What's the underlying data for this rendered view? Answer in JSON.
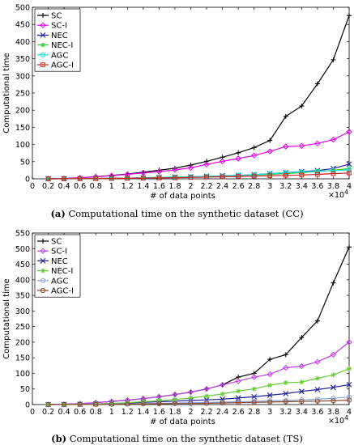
{
  "figure": {
    "captions": [
      {
        "label": "(a)",
        "text": "Computational time on the synthetic dataset (CC)"
      },
      {
        "label": "(b)",
        "text": "Computational time on the synthetic dataset (TS)"
      }
    ]
  },
  "chart_data": [
    {
      "type": "line",
      "title": "",
      "xlabel": "# of data points",
      "ylabel": "Computational time",
      "x_multiplier_label": "×10",
      "x_multiplier_exp": "4",
      "xlim": [
        0,
        4
      ],
      "ylim": [
        0,
        500
      ],
      "xticks": [
        "0",
        "0.2",
        "0.4",
        "0.6",
        "0.8",
        "1",
        "1.2",
        "1.4",
        "1.6",
        "1.8",
        "2",
        "2.2",
        "2.4",
        "2.6",
        "2.8",
        "3",
        "3.2",
        "3.4",
        "3.6",
        "3.8",
        "4"
      ],
      "yticks": [
        "0",
        "50",
        "100",
        "150",
        "200",
        "250",
        "300",
        "350",
        "400",
        "450",
        "500"
      ],
      "legend_position": "top-left",
      "x": [
        0.2,
        0.4,
        0.6,
        0.8,
        1.0,
        1.2,
        1.4,
        1.6,
        1.8,
        2.0,
        2.2,
        2.4,
        2.6,
        2.8,
        3.0,
        3.2,
        3.4,
        3.6,
        3.8,
        4.0
      ],
      "series": [
        {
          "name": "SC",
          "color": "#000000",
          "marker": "plus",
          "values": [
            0.2,
            1,
            3,
            6,
            10,
            14,
            19,
            25,
            31,
            40,
            51,
            63,
            76,
            91,
            112,
            182,
            212,
            277,
            347,
            476
          ]
        },
        {
          "name": "SC-I",
          "color": "#e600e6",
          "marker": "diamond",
          "values": [
            0.2,
            1,
            3,
            6,
            9,
            13,
            17,
            21,
            26,
            32,
            42,
            51,
            59,
            68,
            80,
            94,
            96,
            103,
            114,
            137
          ]
        },
        {
          "name": "NEC",
          "color": "#1f1f9e",
          "marker": "x",
          "values": [
            0.1,
            0.3,
            0.6,
            1,
            1.5,
            2,
            3,
            4,
            5,
            6,
            7,
            9,
            10,
            12,
            15,
            18,
            21,
            24,
            30,
            43
          ]
        },
        {
          "name": "NEC-I",
          "color": "#39cc39",
          "marker": "star",
          "values": [
            0.1,
            0.3,
            0.6,
            1,
            1.5,
            2,
            3,
            4,
            5,
            6,
            7,
            8,
            9,
            11,
            13,
            15,
            18,
            21,
            25,
            30
          ]
        },
        {
          "name": "AGC",
          "color": "#16d9d9",
          "marker": "circle",
          "values": [
            0.1,
            0.3,
            0.6,
            1,
            1.5,
            2,
            3,
            4,
            5,
            6,
            7,
            8,
            10,
            12,
            15,
            18,
            20,
            22,
            24,
            26
          ]
        },
        {
          "name": "AGC-I",
          "color": "#d11a1a",
          "marker": "square",
          "values": [
            0.1,
            0.2,
            0.4,
            0.7,
            1,
            1.5,
            2,
            2.5,
            3,
            4,
            5,
            6,
            7,
            8,
            9,
            10,
            11,
            13,
            15,
            17
          ]
        }
      ]
    },
    {
      "type": "line",
      "title": "",
      "xlabel": "# of data points",
      "ylabel": "Computational time",
      "x_multiplier_label": "×10",
      "x_multiplier_exp": "4",
      "xlim": [
        0,
        4
      ],
      "ylim": [
        0,
        550
      ],
      "xticks": [
        "0",
        "0.2",
        "0.4",
        "0.6",
        "0.8",
        "1",
        "1.2",
        "1.4",
        "1.6",
        "1.8",
        "2",
        "2.2",
        "2.4",
        "2.6",
        "2.8",
        "3",
        "3.2",
        "3.4",
        "3.6",
        "3.8",
        "4"
      ],
      "yticks": [
        "0",
        "50",
        "100",
        "150",
        "200",
        "250",
        "300",
        "350",
        "400",
        "450",
        "500",
        "550"
      ],
      "legend_position": "top-left",
      "x": [
        0.2,
        0.4,
        0.6,
        0.8,
        1.0,
        1.2,
        1.4,
        1.6,
        1.8,
        2.0,
        2.2,
        2.4,
        2.6,
        2.8,
        3.0,
        3.2,
        3.4,
        3.6,
        3.8,
        4.0
      ],
      "series": [
        {
          "name": "SC",
          "color": "#000000",
          "marker": "plus",
          "values": [
            0.3,
            1,
            3,
            6,
            10,
            14,
            19,
            25,
            32,
            40,
            50,
            63,
            88,
            100,
            145,
            160,
            215,
            268,
            390,
            505
          ]
        },
        {
          "name": "SC-I",
          "color": "#bf40e6",
          "marker": "diamond",
          "values": [
            0.3,
            1,
            3,
            6,
            10,
            14,
            19,
            25,
            32,
            40,
            50,
            63,
            75,
            88,
            97,
            118,
            123,
            137,
            160,
            200
          ]
        },
        {
          "name": "NEC",
          "color": "#1f1f9e",
          "marker": "x",
          "values": [
            0.1,
            0.4,
            1,
            2,
            3,
            5,
            7,
            9,
            11,
            13,
            15,
            17,
            21,
            25,
            30,
            35,
            42,
            48,
            55,
            64
          ]
        },
        {
          "name": "NEC-I",
          "color": "#66cc33",
          "marker": "star",
          "values": [
            0.1,
            0.5,
            1,
            2,
            4,
            6,
            9,
            12,
            16,
            21,
            27,
            34,
            43,
            50,
            62,
            70,
            72,
            84,
            95,
            115
          ]
        },
        {
          "name": "AGC",
          "color": "#8fa3d9",
          "marker": "circle",
          "values": [
            0.05,
            0.2,
            0.5,
            1,
            1.5,
            2,
            3,
            4,
            5,
            6,
            7,
            8,
            9,
            10,
            12,
            13,
            15,
            17,
            20,
            24
          ]
        },
        {
          "name": "AGC-I",
          "color": "#8c4a2b",
          "marker": "circle",
          "values": [
            0.05,
            0.15,
            0.3,
            0.6,
            1,
            1.5,
            2,
            2.5,
            3,
            3.5,
            4,
            5,
            6,
            7,
            8,
            9,
            10,
            11,
            12,
            14
          ]
        }
      ]
    }
  ]
}
